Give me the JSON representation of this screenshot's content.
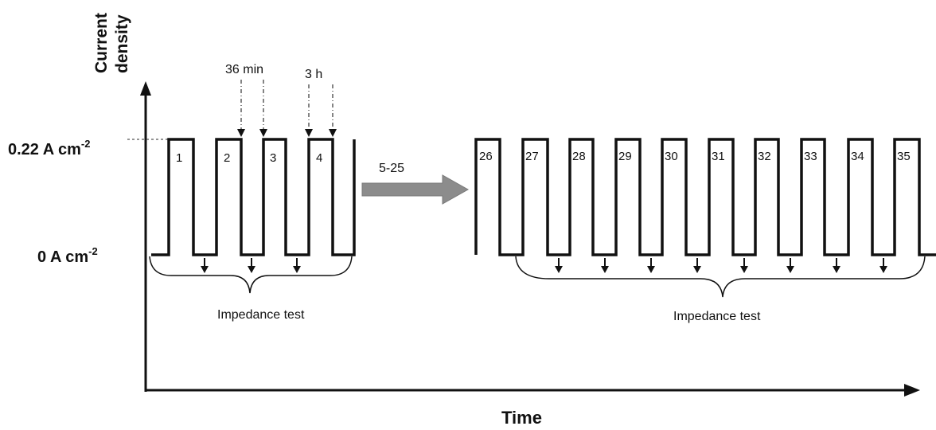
{
  "axes": {
    "y_label_line1": "Current",
    "y_label_line2": "density",
    "x_label": "Time",
    "high_level": {
      "text": "0.22 A cm",
      "sup": "-2"
    },
    "low_level": {
      "text": "0 A cm",
      "sup": "-2"
    }
  },
  "annotations": {
    "interval_36min": "36 min",
    "interval_3h": "3 h",
    "skip_arrow": "5-25",
    "impedance_left": "Impedance test",
    "impedance_right": "Impedance test"
  },
  "cycles_left": [
    "1",
    "2",
    "3",
    "4"
  ],
  "cycles_right": [
    "26",
    "27",
    "28",
    "29",
    "30",
    "31",
    "32",
    "33",
    "34",
    "35"
  ]
}
